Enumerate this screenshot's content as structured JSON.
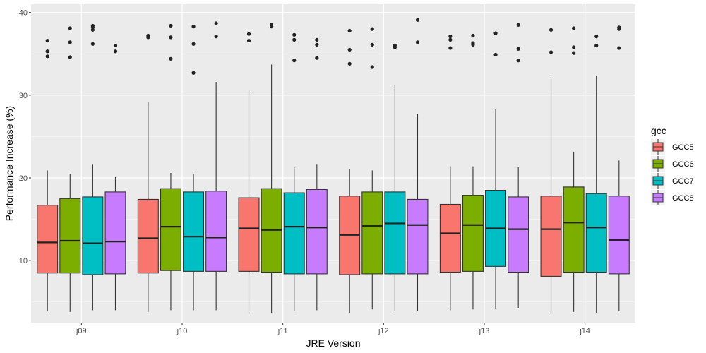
{
  "chart_data": {
    "type": "boxplot",
    "title": "",
    "xlabel": "JRE Version",
    "ylabel": "Performance Increase (%)",
    "categories": [
      "j09",
      "j10",
      "j11",
      "j12",
      "j13",
      "j14"
    ],
    "ylim": [
      2.5,
      41
    ],
    "y_ticks": [
      10,
      20,
      30,
      40
    ],
    "y_tick_labels": [
      "10",
      "20",
      "30",
      "40"
    ],
    "grid": true,
    "legend": {
      "title": "gcc",
      "position": "right"
    },
    "series": [
      {
        "name": "GCC5",
        "color": "#F8766D",
        "boxes": [
          {
            "whisker_low": 3.9,
            "q1": 8.5,
            "median": 12.2,
            "q3": 16.7,
            "whisker_high": 20.9,
            "outliers": [
              36.6,
              35.3,
              34.7
            ]
          },
          {
            "whisker_low": 3.8,
            "q1": 8.5,
            "median": 12.7,
            "q3": 17.4,
            "whisker_high": 29.2,
            "outliers": [
              37.2,
              37.0
            ]
          },
          {
            "whisker_low": 3.7,
            "q1": 8.7,
            "median": 13.9,
            "q3": 17.6,
            "whisker_high": 30.5,
            "outliers": [
              37.4,
              36.6
            ]
          },
          {
            "whisker_low": 3.7,
            "q1": 8.3,
            "median": 13.1,
            "q3": 17.8,
            "whisker_high": 21.1,
            "outliers": [
              37.8,
              35.5,
              33.8
            ]
          },
          {
            "whisker_low": 4.0,
            "q1": 8.6,
            "median": 13.3,
            "q3": 16.8,
            "whisker_high": 21.4,
            "outliers": [
              37.1,
              36.7,
              35.7
            ]
          },
          {
            "whisker_low": 3.6,
            "q1": 8.1,
            "median": 13.8,
            "q3": 17.8,
            "whisker_high": 32.0,
            "outliers": [
              37.9,
              35.2
            ]
          }
        ]
      },
      {
        "name": "GCC6",
        "color": "#7CAE00",
        "boxes": [
          {
            "whisker_low": 3.8,
            "q1": 8.5,
            "median": 12.4,
            "q3": 17.5,
            "whisker_high": 20.5,
            "outliers": [
              38.1,
              36.4,
              34.6
            ]
          },
          {
            "whisker_low": 4.0,
            "q1": 8.8,
            "median": 14.1,
            "q3": 18.7,
            "whisker_high": 20.6,
            "outliers": [
              38.4,
              37.0,
              34.4
            ]
          },
          {
            "whisker_low": 3.7,
            "q1": 8.6,
            "median": 13.7,
            "q3": 18.7,
            "whisker_high": 33.7,
            "outliers": [
              38.5,
              38.3
            ]
          },
          {
            "whisker_low": 4.1,
            "q1": 8.4,
            "median": 14.2,
            "q3": 18.3,
            "whisker_high": 20.9,
            "outliers": [
              38.0,
              36.1,
              33.4
            ]
          },
          {
            "whisker_low": 4.1,
            "q1": 8.7,
            "median": 14.3,
            "q3": 17.9,
            "whisker_high": 21.4,
            "outliers": [
              37.2,
              36.3,
              36.1
            ]
          },
          {
            "whisker_low": 3.8,
            "q1": 8.6,
            "median": 14.6,
            "q3": 18.9,
            "whisker_high": 23.1,
            "outliers": [
              38.1,
              35.8,
              35.1
            ]
          }
        ]
      },
      {
        "name": "GCC7",
        "color": "#00BFC4",
        "boxes": [
          {
            "whisker_low": 4.0,
            "q1": 8.3,
            "median": 12.1,
            "q3": 17.7,
            "whisker_high": 21.6,
            "outliers": [
              38.4,
              38.2,
              37.9,
              36.2
            ]
          },
          {
            "whisker_low": 4.0,
            "q1": 8.7,
            "median": 12.9,
            "q3": 18.3,
            "whisker_high": 20.5,
            "outliers": [
              38.3,
              36.2,
              32.7
            ]
          },
          {
            "whisker_low": 3.9,
            "q1": 8.4,
            "median": 14.1,
            "q3": 18.2,
            "whisker_high": 21.3,
            "outliers": [
              37.3,
              36.7,
              34.2
            ]
          },
          {
            "whisker_low": 3.9,
            "q1": 8.4,
            "median": 14.5,
            "q3": 18.3,
            "whisker_high": 31.2,
            "outliers": [
              36.0,
              35.8
            ]
          },
          {
            "whisker_low": 4.2,
            "q1": 9.3,
            "median": 13.9,
            "q3": 18.5,
            "whisker_high": 28.3,
            "outliers": [
              37.5,
              34.9
            ]
          },
          {
            "whisker_low": 3.6,
            "q1": 8.6,
            "median": 14.0,
            "q3": 18.1,
            "whisker_high": 32.3,
            "outliers": [
              37.1,
              36.0
            ]
          }
        ]
      },
      {
        "name": "GCC8",
        "color": "#C77CFF",
        "boxes": [
          {
            "whisker_low": 4.0,
            "q1": 8.4,
            "median": 12.3,
            "q3": 18.3,
            "whisker_high": 20.1,
            "outliers": [
              36.0,
              35.3
            ]
          },
          {
            "whisker_low": 4.0,
            "q1": 8.7,
            "median": 12.8,
            "q3": 18.4,
            "whisker_high": 31.6,
            "outliers": [
              38.7,
              37.1
            ]
          },
          {
            "whisker_low": 4.0,
            "q1": 8.4,
            "median": 14.0,
            "q3": 18.6,
            "whisker_high": 21.6,
            "outliers": [
              36.7,
              36.1,
              34.5
            ]
          },
          {
            "whisker_low": 3.9,
            "q1": 8.4,
            "median": 14.3,
            "q3": 17.4,
            "whisker_high": 27.7,
            "outliers": [
              39.1,
              36.4
            ]
          },
          {
            "whisker_low": 4.3,
            "q1": 8.6,
            "median": 13.8,
            "q3": 17.7,
            "whisker_high": 21.3,
            "outliers": [
              38.5,
              35.6,
              34.2
            ]
          },
          {
            "whisker_low": 3.9,
            "q1": 8.4,
            "median": 12.5,
            "q3": 17.8,
            "whisker_high": 22.1,
            "outliers": [
              38.2,
              38.0,
              35.7
            ]
          }
        ]
      }
    ]
  }
}
